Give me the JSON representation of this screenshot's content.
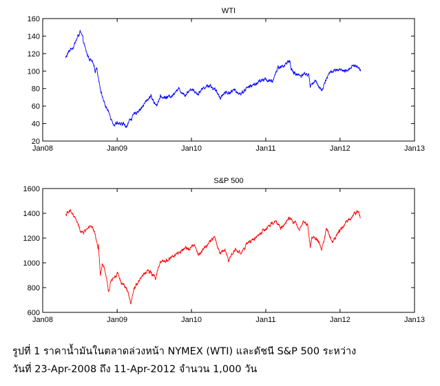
{
  "chart_data": [
    {
      "type": "line",
      "title": "WTI",
      "xlabel": "",
      "ylabel": "",
      "x_ticks": [
        "Jan08",
        "Jan09",
        "Jan10",
        "Jan11",
        "Jan12",
        "Jan13"
      ],
      "y_ticks": [
        20,
        40,
        60,
        80,
        100,
        120,
        140,
        160
      ],
      "xlim": [
        "2008-01-01",
        "2013-01-01"
      ],
      "ylim": [
        20,
        160
      ],
      "grid": false,
      "color": "#0000ff",
      "series": [
        {
          "x": [
            "2008-04-23",
            "2008-05-15",
            "2008-06-01",
            "2008-06-15",
            "2008-07-03",
            "2008-07-15",
            "2008-08-01",
            "2008-08-15",
            "2008-09-01",
            "2008-09-15",
            "2008-09-22",
            "2008-10-01",
            "2008-10-15",
            "2008-11-01",
            "2008-11-15",
            "2008-12-01",
            "2008-12-19",
            "2009-01-01",
            "2009-01-15",
            "2009-02-01",
            "2009-02-12",
            "2009-03-01",
            "2009-03-15",
            "2009-04-01",
            "2009-05-01",
            "2009-06-01",
            "2009-06-15",
            "2009-07-01",
            "2009-07-15",
            "2009-08-01",
            "2009-09-01",
            "2009-10-01",
            "2009-10-15",
            "2009-11-01",
            "2009-12-01",
            "2010-01-01",
            "2010-02-01",
            "2010-03-01",
            "2010-04-01",
            "2010-05-01",
            "2010-05-25",
            "2010-06-15",
            "2010-07-01",
            "2010-08-01",
            "2010-09-01",
            "2010-10-01",
            "2010-11-01",
            "2010-12-01",
            "2011-01-01",
            "2011-02-01",
            "2011-03-01",
            "2011-04-01",
            "2011-04-29",
            "2011-05-06",
            "2011-05-20",
            "2011-06-15",
            "2011-07-15",
            "2011-08-01",
            "2011-08-08",
            "2011-08-15",
            "2011-09-01",
            "2011-09-15",
            "2011-10-04",
            "2011-10-15",
            "2011-11-01",
            "2011-11-15",
            "2011-12-01",
            "2012-01-01",
            "2012-02-01",
            "2012-02-15",
            "2012-03-01",
            "2012-03-15",
            "2012-04-01",
            "2012-04-11"
          ],
          "values": [
            115,
            125,
            128,
            136,
            145,
            138,
            122,
            115,
            110,
            100,
            105,
            92,
            75,
            62,
            55,
            47,
            38,
            42,
            38,
            40,
            36,
            43,
            47,
            52,
            58,
            68,
            72,
            64,
            62,
            70,
            70,
            72,
            78,
            79,
            73,
            80,
            74,
            81,
            84,
            77,
            70,
            76,
            75,
            78,
            74,
            81,
            84,
            88,
            91,
            87,
            104,
            106,
            113,
            101,
            98,
            95,
            97,
            95,
            82,
            86,
            88,
            85,
            77,
            86,
            94,
            99,
            100,
            101,
            99,
            103,
            106,
            106,
            105,
            102
          ]
        }
      ]
    },
    {
      "type": "line",
      "title": "S&P 500",
      "xlabel": "",
      "ylabel": "",
      "x_ticks": [
        "Jan08",
        "Jan09",
        "Jan10",
        "Jan11",
        "Jan12",
        "Jan13"
      ],
      "y_ticks": [
        600,
        800,
        1000,
        1200,
        1400,
        1600
      ],
      "xlim": [
        "2008-01-01",
        "2013-01-01"
      ],
      "ylim": [
        600,
        1600
      ],
      "grid": false,
      "color": "#ff0000",
      "series": [
        {
          "x": [
            "2008-04-23",
            "2008-05-19",
            "2008-06-01",
            "2008-06-15",
            "2008-07-01",
            "2008-07-15",
            "2008-08-01",
            "2008-08-15",
            "2008-09-01",
            "2008-09-15",
            "2008-09-29",
            "2008-10-01",
            "2008-10-10",
            "2008-10-20",
            "2008-11-01",
            "2008-11-20",
            "2008-12-01",
            "2008-12-15",
            "2009-01-05",
            "2009-01-20",
            "2009-02-01",
            "2009-02-20",
            "2009-03-09",
            "2009-03-25",
            "2009-04-15",
            "2009-05-01",
            "2009-06-01",
            "2009-07-08",
            "2009-08-01",
            "2009-09-01",
            "2009-10-01",
            "2009-11-01",
            "2009-12-01",
            "2010-01-15",
            "2010-02-05",
            "2010-03-01",
            "2010-04-23",
            "2010-05-20",
            "2010-06-15",
            "2010-07-02",
            "2010-08-01",
            "2010-09-01",
            "2010-10-01",
            "2010-11-01",
            "2010-12-01",
            "2011-01-01",
            "2011-02-18",
            "2011-03-15",
            "2011-04-29",
            "2011-05-15",
            "2011-06-15",
            "2011-07-05",
            "2011-07-25",
            "2011-08-08",
            "2011-08-15",
            "2011-09-01",
            "2011-09-20",
            "2011-10-03",
            "2011-10-27",
            "2011-11-25",
            "2011-12-15",
            "2012-01-15",
            "2012-02-15",
            "2012-03-15",
            "2012-04-02",
            "2012-04-11"
          ],
          "values": [
            1390,
            1420,
            1380,
            1340,
            1270,
            1240,
            1270,
            1290,
            1280,
            1230,
            1110,
            1140,
            900,
            980,
            950,
            760,
            860,
            880,
            920,
            840,
            830,
            770,
            680,
            800,
            850,
            890,
            940,
            880,
            1000,
            1020,
            1050,
            1080,
            1110,
            1140,
            1060,
            1110,
            1210,
            1080,
            1110,
            1020,
            1110,
            1080,
            1150,
            1190,
            1230,
            1270,
            1340,
            1280,
            1360,
            1340,
            1270,
            1340,
            1320,
            1120,
            1200,
            1200,
            1170,
            1100,
            1280,
            1160,
            1230,
            1300,
            1350,
            1400,
            1420,
            1360
          ]
        }
      ]
    }
  ],
  "caption": {
    "line1": "รูปที่ 1  ราคาน้ำมันในตลาดล่วงหน้า NYMEX (WTI) และดัชนี S&P 500 ระหว่าง",
    "line2": "วันที่ 23-Apr-2008 ถึง 11-Apr-2012 จำนวน 1,000 วัน"
  }
}
